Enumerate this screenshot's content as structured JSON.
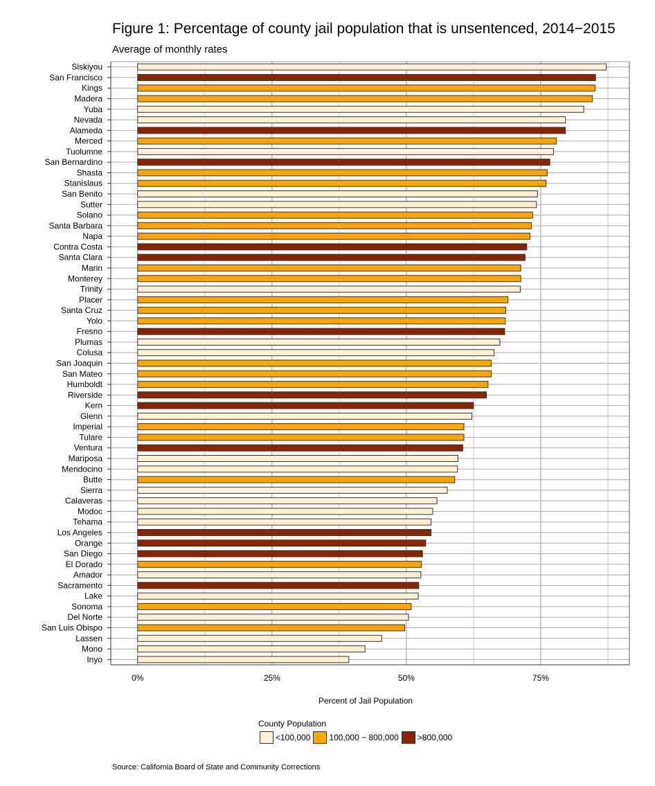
{
  "chart_data": {
    "type": "bar",
    "orientation": "horizontal",
    "title": "Figure 1: Percentage of county jail population that is unsentenced, 2014−2015",
    "subtitle": "Average of monthly rates",
    "xlabel": "Percent of Jail Population",
    "ylabel": "",
    "xlim": [
      -5,
      91.5
    ],
    "xticks": [
      0,
      25,
      50,
      75
    ],
    "xtick_labels": [
      "0%",
      "25%",
      "50%",
      "75%"
    ],
    "grid": true,
    "legend_title": "County Population",
    "legend_placement": "bottom",
    "groups": [
      {
        "key": "small",
        "name": "<100,000",
        "color": "#FFEFD5"
      },
      {
        "key": "mid",
        "name": "100,000 − 800,000",
        "color": "#FFA500"
      },
      {
        "key": "large",
        "name": ">800,000",
        "color": "#8B2500"
      }
    ],
    "categories": [
      "Siskiyou",
      "San Francisco",
      "Kings",
      "Madera",
      "Yuba",
      "Nevada",
      "Alameda",
      "Merced",
      "Tuolumne",
      "San Bernardino",
      "Shasta",
      "Stanislaus",
      "San Benito",
      "Sutter",
      "Solano",
      "Santa Barbara",
      "Napa",
      "Contra Costa",
      "Santa Clara",
      "Marin",
      "Monterey",
      "Trinity",
      "Placer",
      "Santa Cruz",
      "Yolo",
      "Fresno",
      "Plumas",
      "Colusa",
      "San Joaquin",
      "San Mateo",
      "Humboldt",
      "Riverside",
      "Kern",
      "Glenn",
      "Imperial",
      "Tulare",
      "Ventura",
      "Mariposa",
      "Mendocino",
      "Butte",
      "Sierra",
      "Calaveras",
      "Modoc",
      "Tehama",
      "Los Angeles",
      "Orange",
      "San Diego",
      "El Dorado",
      "Amador",
      "Sacramento",
      "Lake",
      "Sonoma",
      "Del Norte",
      "San Luis Obispo",
      "Lassen",
      "Mono",
      "Inyo"
    ],
    "values": [
      87.2,
      85.2,
      85.1,
      84.6,
      83.0,
      79.6,
      79.6,
      77.9,
      77.4,
      76.7,
      76.2,
      76.0,
      74.4,
      74.2,
      73.5,
      73.3,
      73.0,
      72.4,
      72.1,
      71.3,
      71.3,
      71.2,
      68.9,
      68.5,
      68.4,
      68.3,
      67.4,
      66.3,
      65.8,
      65.8,
      65.2,
      64.9,
      62.5,
      62.2,
      60.7,
      60.7,
      60.5,
      59.6,
      59.5,
      59.0,
      57.6,
      55.7,
      54.9,
      54.6,
      54.6,
      53.6,
      53.0,
      52.8,
      52.7,
      52.3,
      52.2,
      50.9,
      50.4,
      49.7,
      45.4,
      42.3,
      39.3
    ],
    "population_group": [
      "small",
      "large",
      "mid",
      "mid",
      "small",
      "small",
      "large",
      "mid",
      "small",
      "large",
      "mid",
      "mid",
      "small",
      "small",
      "mid",
      "mid",
      "mid",
      "large",
      "large",
      "mid",
      "mid",
      "small",
      "mid",
      "mid",
      "mid",
      "large",
      "small",
      "small",
      "mid",
      "mid",
      "mid",
      "large",
      "large",
      "small",
      "mid",
      "mid",
      "large",
      "small",
      "small",
      "mid",
      "small",
      "small",
      "small",
      "small",
      "large",
      "large",
      "large",
      "mid",
      "small",
      "large",
      "small",
      "mid",
      "small",
      "mid",
      "small",
      "small",
      "small"
    ]
  },
  "source": "Source: California Board of State and Community Corrections"
}
